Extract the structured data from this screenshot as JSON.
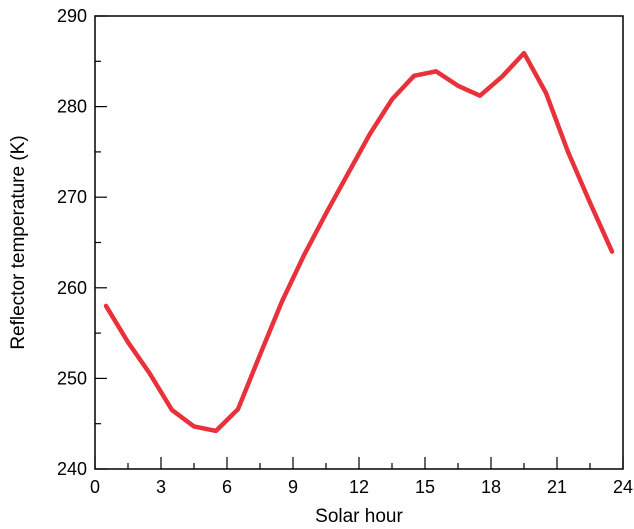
{
  "chart_data": {
    "type": "line",
    "title": "",
    "xlabel": "Solar hour",
    "ylabel": "Reflector temperature (K)",
    "xlim": [
      0,
      24
    ],
    "ylim": [
      240,
      290
    ],
    "xticks": [
      0,
      3,
      6,
      9,
      12,
      15,
      18,
      21,
      24
    ],
    "xtick_labels": [
      "0",
      "3",
      "6",
      "9",
      "12",
      "15",
      "18",
      "21",
      "24"
    ],
    "yticks": [
      240,
      250,
      260,
      270,
      280,
      290
    ],
    "ytick_labels": [
      "240",
      "250",
      "260",
      "270",
      "280",
      "290"
    ],
    "grid": false,
    "legend": "none",
    "series": [
      {
        "color": "#e8313a",
        "x": [
          0.5,
          1.5,
          2.5,
          3.5,
          4.5,
          5.5,
          6.5,
          7.5,
          8.5,
          9.5,
          10.5,
          11.5,
          12.5,
          13.5,
          14.5,
          15.5,
          16.5,
          17.5,
          18.5,
          19.5,
          20.5,
          21.5,
          22.5,
          23.5
        ],
        "y": [
          258,
          254,
          250.5,
          246.5,
          244.7,
          244.2,
          246.6,
          252.6,
          258.5,
          263.6,
          268.2,
          272.6,
          277,
          280.8,
          283.4,
          283.9,
          282.3,
          281.2,
          283.3,
          285.9,
          281.5,
          275,
          269.4,
          264
        ]
      }
    ]
  }
}
